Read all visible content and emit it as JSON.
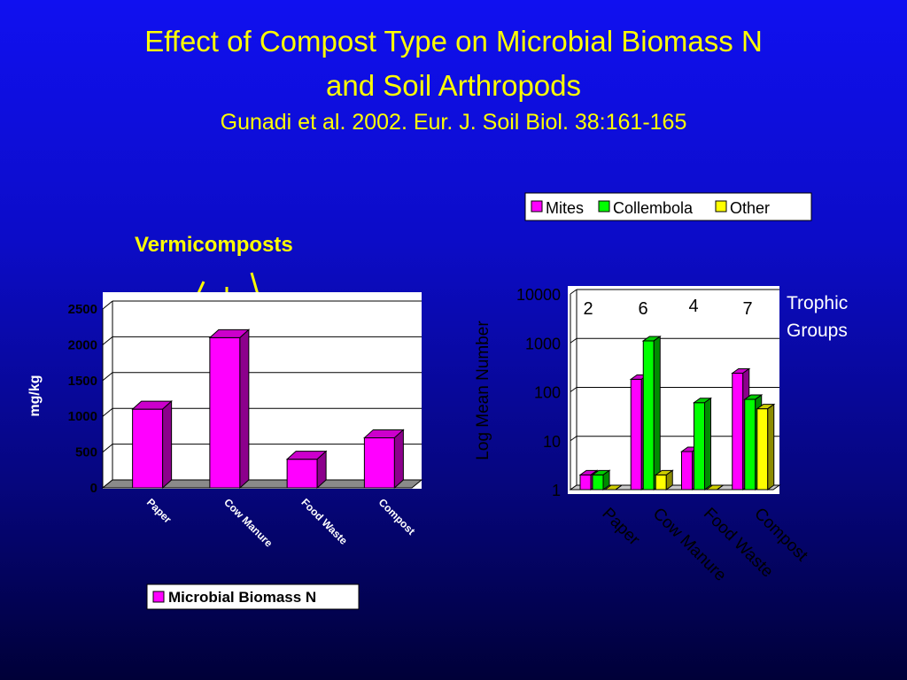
{
  "slide": {
    "title_line1": "Effect of Compost Type on Microbial Biomass N",
    "title_line2": "and Soil Arthropods",
    "citation": "Gunadi et al. 2002.  Eur. J. Soil Biol. 38:161-165",
    "annotation": "Vermicomposts",
    "trophic_label_1": "Trophic",
    "trophic_label_2": "Groups",
    "title_color": "#ffff00"
  },
  "chart_data": [
    {
      "type": "bar",
      "categories": [
        "Paper",
        "Cow Manure",
        "Food Waste",
        "Compost"
      ],
      "series": [
        {
          "name": "Microbial Biomass N",
          "values": [
            1100,
            2100,
            400,
            700
          ],
          "color": "#ff00ff"
        }
      ],
      "ylabel": "mg/kg",
      "ylim": [
        0,
        2500
      ],
      "yticks": [
        "0",
        "500",
        "1000",
        "1500",
        "2000",
        "2500"
      ],
      "grid": true,
      "legend": "bottom"
    },
    {
      "type": "bar",
      "categories": [
        "Paper",
        "Cow Manure",
        "Food Waste",
        "Compost"
      ],
      "series": [
        {
          "name": "Mites",
          "values": [
            2,
            180,
            6,
            240
          ],
          "color": "#ff00ff"
        },
        {
          "name": "Collembola",
          "values": [
            2,
            1100,
            60,
            70
          ],
          "color": "#00ff00"
        },
        {
          "name": "Other",
          "values": [
            1,
            2,
            1,
            45
          ],
          "color": "#ffff00"
        }
      ],
      "ylabel": "Log Mean Number",
      "yscale": "log",
      "ylim": [
        1,
        10000
      ],
      "yticks": [
        "1",
        "10",
        "100",
        "1000",
        "10000"
      ],
      "trophic_groups": [
        "2",
        "6",
        "4",
        "7"
      ],
      "grid": true,
      "legend": "top"
    }
  ]
}
